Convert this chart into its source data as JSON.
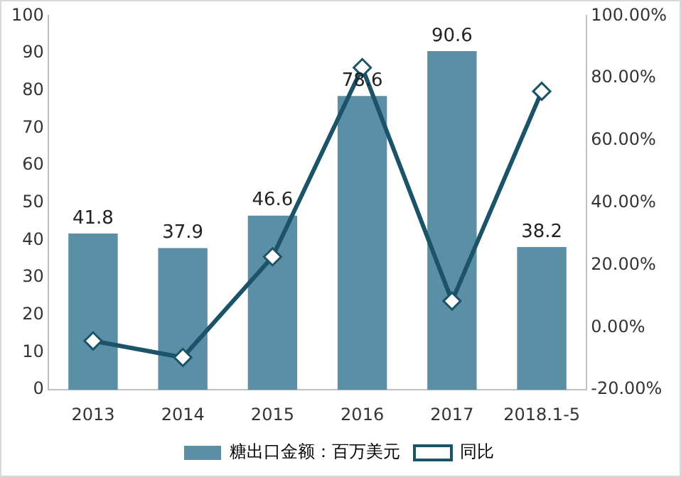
{
  "chart_data": {
    "type": "bar",
    "categories": [
      "2013",
      "2014",
      "2015",
      "2016",
      "2017",
      "2018.1-5"
    ],
    "series": [
      {
        "name": "糖出口金额：百万美元",
        "color": "#5b8fa6",
        "values": [
          41.8,
          37.9,
          46.6,
          78.6,
          90.6,
          38.2
        ],
        "value_labels": [
          "41.8",
          "37.9",
          "46.6",
          "78.6",
          "90.6",
          "38.2"
        ]
      },
      {
        "name": "同比",
        "type": "line",
        "axis": "y2",
        "color": "#1b5369",
        "marker": "diamond",
        "values": [
          -4.3,
          -9.6,
          22.7,
          83.4,
          8.5,
          75.8
        ]
      }
    ],
    "ylim": [
      0,
      100
    ],
    "yticks": [
      0,
      10,
      20,
      30,
      40,
      50,
      60,
      70,
      80,
      90,
      100
    ],
    "y2lim": [
      -20,
      100
    ],
    "y2ticks": [
      {
        "value": -20,
        "label": "-20.00%"
      },
      {
        "value": 0,
        "label": "0.00%"
      },
      {
        "value": 20,
        "label": "20.00%"
      },
      {
        "value": 40,
        "label": "40.00%"
      },
      {
        "value": 60,
        "label": "60.00%"
      },
      {
        "value": 80,
        "label": "80.00%"
      },
      {
        "value": 100,
        "label": "100.00%"
      }
    ],
    "grid": false,
    "legend": "bottom"
  }
}
